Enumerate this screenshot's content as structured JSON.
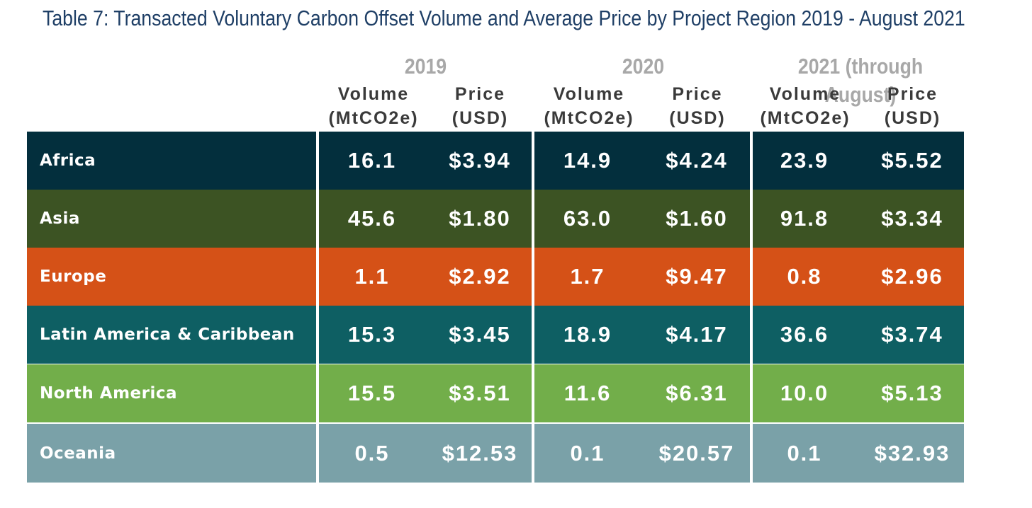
{
  "title": "Table 7: Transacted Voluntary Carbon Offset Volume and Average Price by Project Region 2019 - August 2021",
  "years": [
    "2019",
    "2020",
    "2021 (through August)"
  ],
  "column_headers": {
    "volume_line1": "Volume",
    "volume_line2": "(MtCO2e)",
    "price_line1": "Price",
    "price_line2": "(USD)"
  },
  "rows": [
    {
      "region": "Africa",
      "v2019": "16.1",
      "p2019": "$3.94",
      "v2020": "14.9",
      "p2020": "$4.24",
      "v2021": "23.9",
      "p2021": "$5.52",
      "color": "#032f3d"
    },
    {
      "region": "Asia",
      "v2019": "45.6",
      "p2019": "$1.80",
      "v2020": "63.0",
      "p2020": "$1.60",
      "v2021": "91.8",
      "p2021": "$3.34",
      "color": "#3c5323"
    },
    {
      "region": "Europe",
      "v2019": "1.1",
      "p2019": "$2.92",
      "v2020": "1.7",
      "p2020": "$9.47",
      "v2021": "0.8",
      "p2021": "$2.96",
      "color": "#d55117"
    },
    {
      "region": "Latin America & Caribbean",
      "v2019": "15.3",
      "p2019": "$3.45",
      "v2020": "18.9",
      "p2020": "$4.17",
      "v2021": "36.6",
      "p2021": "$3.74",
      "color": "#0e5f63"
    },
    {
      "region": "North America",
      "v2019": "15.5",
      "p2019": "$3.51",
      "v2020": "11.6",
      "p2020": "$6.31",
      "v2021": "10.0",
      "p2021": "$5.13",
      "color": "#72ae4a"
    },
    {
      "region": "Oceania",
      "v2019": "0.5",
      "p2019": "$12.53",
      "v2020": "0.1",
      "p2020": "$20.57",
      "v2021": "0.1",
      "p2021": "$32.93",
      "color": "#7aa1a8"
    }
  ]
}
